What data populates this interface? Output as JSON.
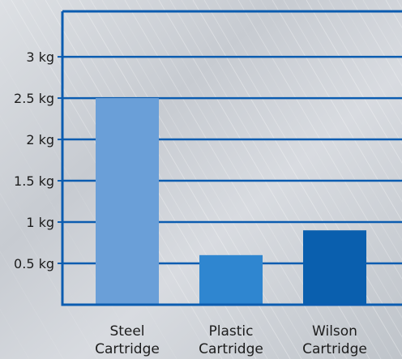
{
  "chart_data": {
    "type": "bar",
    "categories": [
      [
        "Steel",
        "Cartridge"
      ],
      [
        "Plastic",
        "Cartridge"
      ],
      [
        "Wilson",
        "Cartridge"
      ]
    ],
    "values": [
      2.5,
      0.6,
      0.9
    ],
    "bar_colors": [
      "#6a9fd8",
      "#2f86d0",
      "#0a5fae"
    ],
    "y_ticks": [
      {
        "value": 0.5,
        "label": "0.5 kg"
      },
      {
        "value": 1,
        "label": "1 kg"
      },
      {
        "value": 1.5,
        "label": "1.5 kg"
      },
      {
        "value": 2,
        "label": "2 kg"
      },
      {
        "value": 2.5,
        "label": "2.5 kg"
      },
      {
        "value": 3,
        "label": "3 kg"
      }
    ],
    "ylim": [
      0,
      3.55
    ],
    "grid": true,
    "title": "",
    "xlabel": "",
    "ylabel": "",
    "frame_color": "#0b5cb0",
    "background_color": "#cfd3d8"
  }
}
